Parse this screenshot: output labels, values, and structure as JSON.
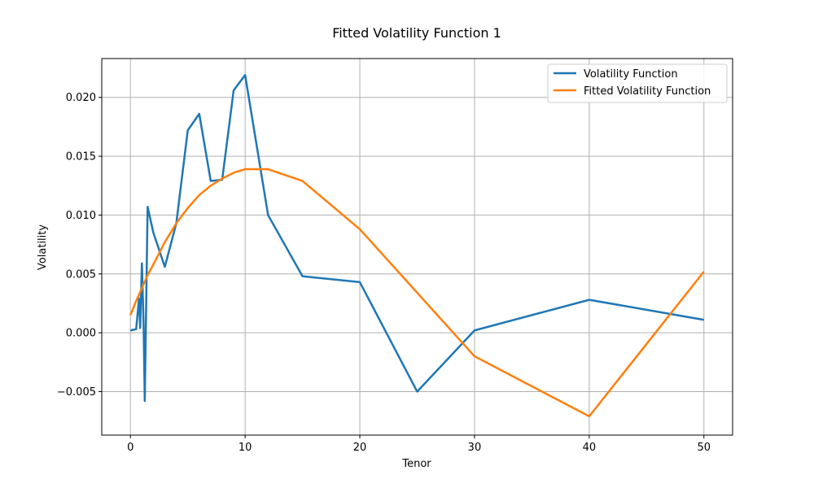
{
  "chart_data": {
    "type": "line",
    "title": "Fitted Volatility Function 1",
    "xlabel": "Tenor",
    "ylabel": "Volatility",
    "xlim": [
      -2.5,
      52.5
    ],
    "ylim": [
      -0.0087,
      0.0233
    ],
    "xticks": [
      0,
      10,
      20,
      30,
      40,
      50
    ],
    "xtick_labels": [
      "0",
      "10",
      "20",
      "30",
      "40",
      "50"
    ],
    "yticks": [
      -0.005,
      0.0,
      0.005,
      0.01,
      0.015,
      0.02
    ],
    "ytick_labels": [
      "−0.005",
      "0.000",
      "0.005",
      "0.010",
      "0.015",
      "0.020"
    ],
    "grid": true,
    "legend_position": "top-right",
    "series": [
      {
        "name": "Volatility Function",
        "color": "#1f77b4",
        "x": [
          0,
          0.5,
          0.75,
          0.85,
          1.0,
          1.15,
          1.25,
          1.5,
          2,
          3,
          4,
          5,
          6,
          7,
          8,
          9,
          10,
          12,
          15,
          20,
          25,
          30,
          40,
          50
        ],
        "y": [
          0.0002,
          0.0003,
          0.0029,
          0.0004,
          0.0059,
          0.0006,
          -0.0058,
          0.0107,
          0.0085,
          0.0056,
          0.0093,
          0.0172,
          0.0186,
          0.0129,
          0.013,
          0.0206,
          0.0219,
          0.01,
          0.0048,
          0.0043,
          -0.005,
          0.0002,
          0.0028,
          0.0011
        ]
      },
      {
        "name": "Fitted Volatility Function",
        "color": "#ff7f0e",
        "x": [
          0,
          0.5,
          1,
          1.5,
          2,
          3,
          4,
          5,
          6,
          7,
          8,
          9,
          10,
          12,
          15,
          20,
          30,
          40,
          50
        ],
        "y": [
          0.0015,
          0.0027,
          0.0038,
          0.0049,
          0.0058,
          0.0077,
          0.0093,
          0.0106,
          0.0117,
          0.0125,
          0.0131,
          0.0136,
          0.0139,
          0.0139,
          0.0129,
          0.0088,
          -0.002,
          -0.0071,
          0.0052
        ]
      }
    ]
  }
}
